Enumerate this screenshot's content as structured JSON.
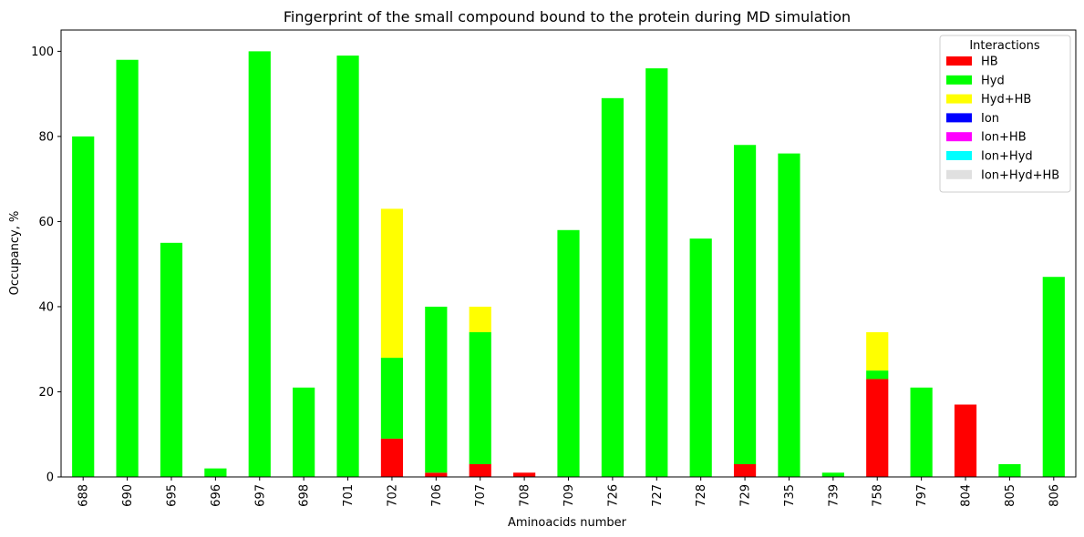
{
  "chart_data": {
    "type": "bar",
    "stacked": true,
    "title": "Fingerprint of the small compound bound to the protein during MD simulation",
    "xlabel": "Aminoacids number",
    "ylabel": "Occupancy, %",
    "ylim": [
      0,
      105
    ],
    "yticks": [
      0,
      20,
      40,
      60,
      80,
      100
    ],
    "grid": false,
    "legend": {
      "title": "Interactions",
      "placement": "top-right"
    },
    "categories": [
      "688",
      "690",
      "695",
      "696",
      "697",
      "698",
      "701",
      "702",
      "706",
      "707",
      "708",
      "709",
      "726",
      "727",
      "728",
      "729",
      "735",
      "739",
      "758",
      "797",
      "804",
      "805",
      "806"
    ],
    "series": [
      {
        "name": "HB",
        "color": "#ff0000",
        "values": [
          0,
          0,
          0,
          0,
          0,
          0,
          0,
          9,
          1,
          3,
          1,
          0,
          0,
          0,
          0,
          3,
          0,
          0,
          23,
          0,
          17,
          0,
          0
        ]
      },
      {
        "name": "Hyd",
        "color": "#00ff00",
        "values": [
          80,
          98,
          55,
          2,
          100,
          21,
          99,
          19,
          39,
          31,
          0,
          58,
          89,
          96,
          56,
          75,
          76,
          1,
          2,
          21,
          0,
          3,
          47
        ]
      },
      {
        "name": "Hyd+HB",
        "color": "#ffff00",
        "values": [
          0,
          0,
          0,
          0,
          0,
          0,
          0,
          35,
          0,
          6,
          0,
          0,
          0,
          0,
          0,
          0,
          0,
          0,
          9,
          0,
          0,
          0,
          0
        ]
      },
      {
        "name": "Ion",
        "color": "#0000ff",
        "values": [
          0,
          0,
          0,
          0,
          0,
          0,
          0,
          0,
          0,
          0,
          0,
          0,
          0,
          0,
          0,
          0,
          0,
          0,
          0,
          0,
          0,
          0,
          0
        ]
      },
      {
        "name": "Ion+HB",
        "color": "#ff00ff",
        "values": [
          0,
          0,
          0,
          0,
          0,
          0,
          0,
          0,
          0,
          0,
          0,
          0,
          0,
          0,
          0,
          0,
          0,
          0,
          0,
          0,
          0,
          0,
          0
        ]
      },
      {
        "name": "Ion+Hyd",
        "color": "#00ffff",
        "values": [
          0,
          0,
          0,
          0,
          0,
          0,
          0,
          0,
          0,
          0,
          0,
          0,
          0,
          0,
          0,
          0,
          0,
          0,
          0,
          0,
          0,
          0,
          0
        ]
      },
      {
        "name": "Ion+Hyd+HB",
        "color": "#e0e0e0",
        "values": [
          0,
          0,
          0,
          0,
          0,
          0,
          0,
          0,
          0,
          0,
          0,
          0,
          0,
          0,
          0,
          0,
          0,
          0,
          0,
          0,
          0,
          0,
          0
        ]
      }
    ]
  }
}
